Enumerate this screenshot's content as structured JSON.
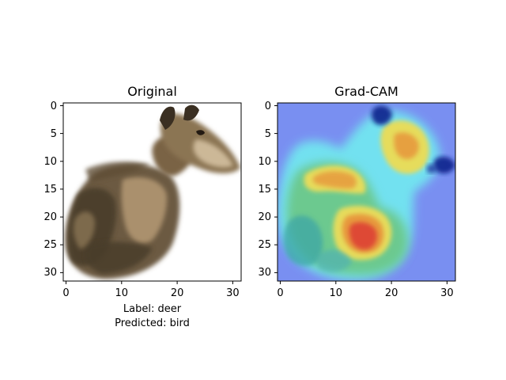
{
  "panels": [
    {
      "title": "Original",
      "x_ticks": [
        "0",
        "10",
        "20",
        "30"
      ],
      "y_ticks": [
        "0",
        "5",
        "10",
        "15",
        "20",
        "25",
        "30"
      ]
    },
    {
      "title": "Grad-CAM",
      "x_ticks": [
        "0",
        "10",
        "20",
        "30"
      ],
      "y_ticks": [
        "0",
        "5",
        "10",
        "15",
        "20",
        "25",
        "30"
      ]
    }
  ],
  "caption": {
    "label": "Label: deer",
    "predicted": "Predicted: bird"
  },
  "colors": {
    "deer_dark": "#4a3d2c",
    "deer_mid": "#7a6445",
    "deer_light": "#b59a74",
    "deer_pale": "#d8c4a4",
    "cam_blue": "#6e84ee",
    "cam_cyan": "#72e6f0",
    "cam_green": "#6cc98f",
    "cam_yellow": "#e6dc5c",
    "cam_orange": "#e79a3d",
    "cam_red": "#de4a36",
    "cam_navy": "#10238c"
  }
}
